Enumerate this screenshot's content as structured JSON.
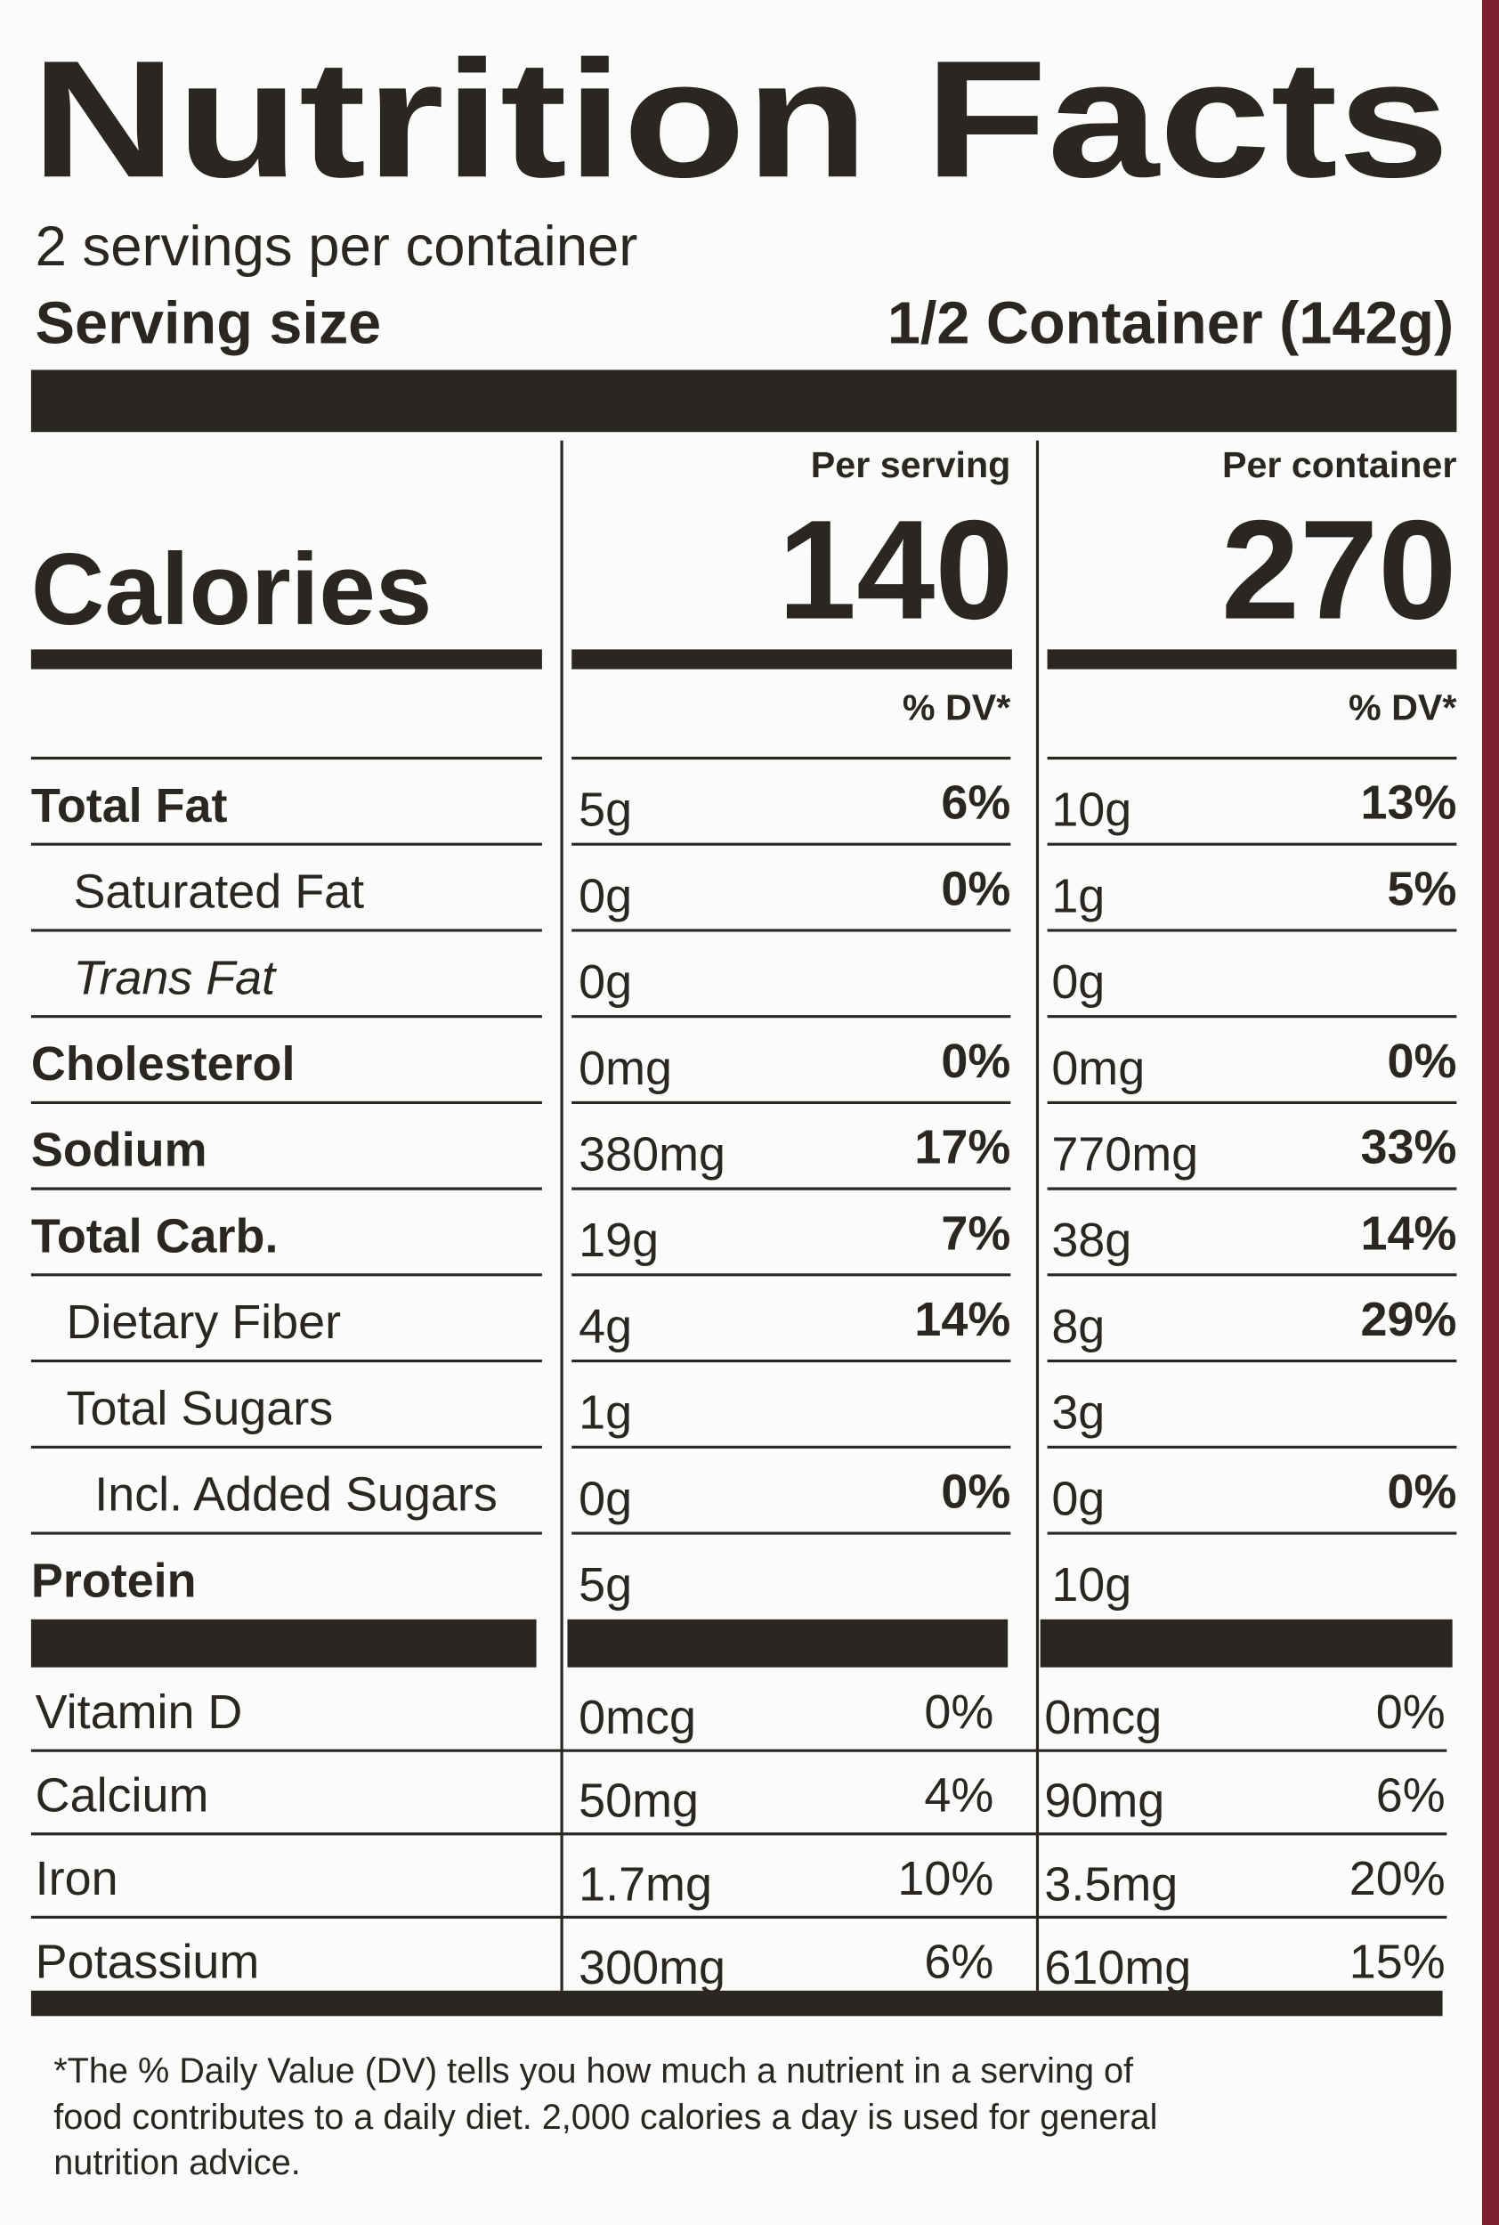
{
  "title": "Nutrition Facts",
  "servings": "2 servings per container",
  "serving_size": {
    "label": "Serving size",
    "value": "1/2 Container (142g)"
  },
  "columns": [
    "Per serving",
    "Per container"
  ],
  "calories": {
    "label": "Calories",
    "per_serving": "140",
    "per_container": "270"
  },
  "dv_header": "% DV*",
  "rows": [
    {
      "name": "Total Fat",
      "serving": [
        "5g",
        "6%"
      ],
      "container": [
        "10g",
        "13%"
      ]
    },
    {
      "name": "Saturated Fat",
      "serving": [
        "0g",
        "0%"
      ],
      "container": [
        "1g",
        "5%"
      ]
    },
    {
      "name": "Trans Fat",
      "serving": [
        "0g",
        null
      ],
      "container": [
        "0g",
        null
      ]
    },
    {
      "name": "Cholesterol",
      "serving": [
        "0mg",
        "0%"
      ],
      "container": [
        "0mg",
        "0%"
      ]
    },
    {
      "name": "Sodium",
      "serving": [
        "380mg",
        "17%"
      ],
      "container": [
        "770mg",
        "33%"
      ]
    },
    {
      "name": "Total Carb.",
      "serving": [
        "19g",
        "7%"
      ],
      "container": [
        "38g",
        "14%"
      ]
    },
    {
      "name": "Dietary Fiber",
      "serving": [
        "4g",
        "14%"
      ],
      "container": [
        "8g",
        "29%"
      ]
    },
    {
      "name": "Total Sugars",
      "serving": [
        "1g",
        null
      ],
      "container": [
        "3g",
        null
      ]
    },
    {
      "name": "Incl. Added Sugars",
      "serving": [
        "0g",
        "0%"
      ],
      "container": [
        "0g",
        "0%"
      ]
    },
    {
      "name": "Protein",
      "serving": [
        "5g",
        null
      ],
      "container": [
        "10g",
        null
      ]
    }
  ],
  "vitamins": [
    {
      "name": "Vitamin D",
      "serving": [
        "0mcg",
        "0%"
      ],
      "container": [
        "0mcg",
        "0%"
      ]
    },
    {
      "name": "Calcium",
      "serving": [
        "50mg",
        "4%"
      ],
      "container": [
        "90mg",
        "6%"
      ]
    },
    {
      "name": "Iron",
      "serving": [
        "1.7mg",
        "10%"
      ],
      "container": [
        "3.5mg",
        "20%"
      ]
    },
    {
      "name": "Potassium",
      "serving": [
        "300mg",
        "6%"
      ],
      "container": [
        "610mg",
        "15%"
      ]
    }
  ],
  "footnote": [
    "*The % Daily Value (DV) tells you how much a nutrient in a serving of",
    "food contributes to a daily diet. 2,000 calories a day is used for general",
    "nutrition advice."
  ]
}
